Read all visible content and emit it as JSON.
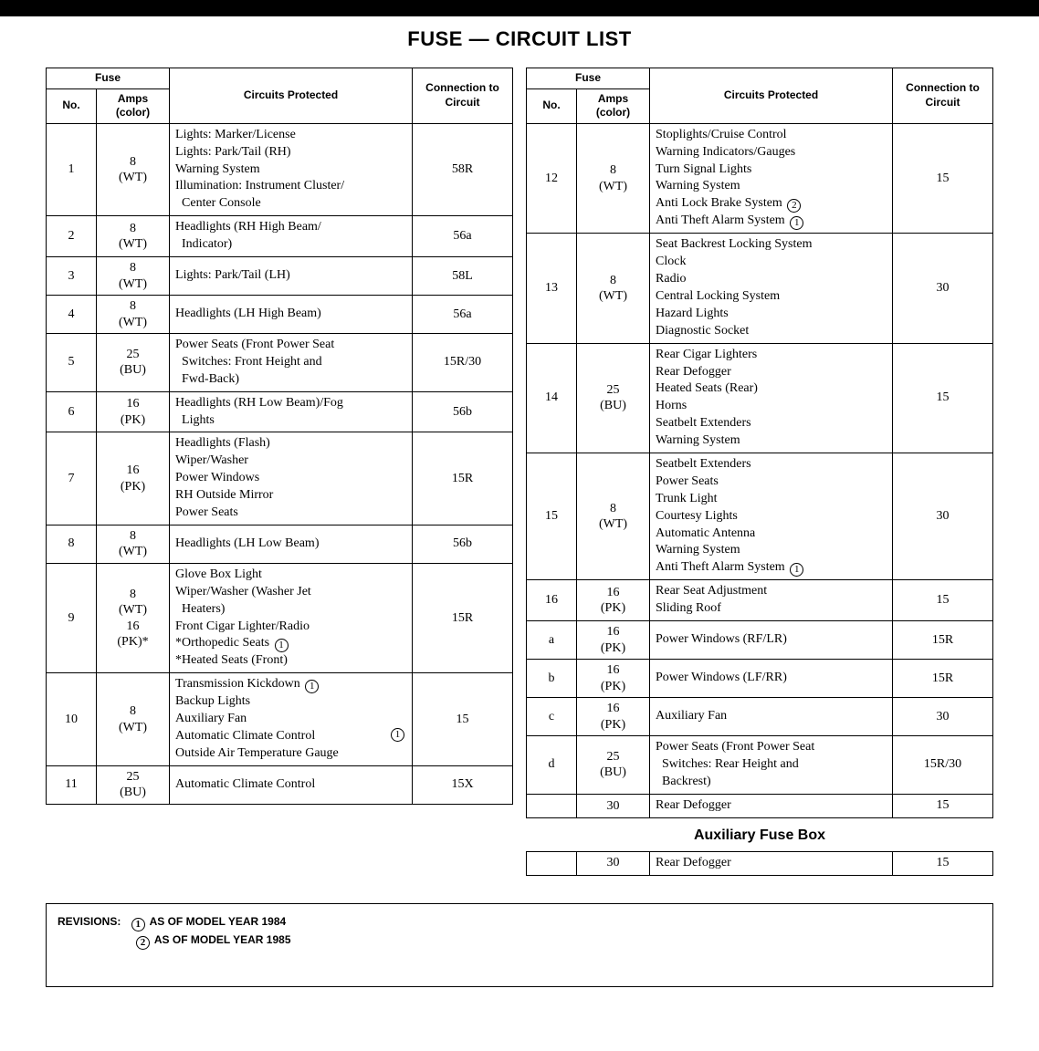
{
  "title": "FUSE — CIRCUIT LIST",
  "headers": {
    "fuse": "Fuse",
    "no": "No.",
    "amps": "Amps\n(color)",
    "circuits": "Circuits Protected",
    "conn": "Connection to\nCircuit"
  },
  "left_rows": [
    {
      "no": "1",
      "amps": "8\n(WT)",
      "circuits": [
        "Lights: Marker/License",
        "Lights: Park/Tail (RH)",
        "Warning System",
        "Illumination: Instrument Cluster/",
        "  Center Console"
      ],
      "conn": "58R"
    },
    {
      "no": "2",
      "amps": "8\n(WT)",
      "circuits": [
        "Headlights (RH High Beam/",
        "  Indicator)"
      ],
      "conn": "56a"
    },
    {
      "no": "3",
      "amps": "8\n(WT)",
      "circuits": [
        "Lights: Park/Tail (LH)"
      ],
      "conn": "58L"
    },
    {
      "no": "4",
      "amps": "8\n(WT)",
      "circuits": [
        "Headlights (LH High Beam)"
      ],
      "conn": "56a"
    },
    {
      "no": "5",
      "amps": "25\n(BU)",
      "circuits": [
        "Power Seats (Front Power Seat",
        "  Switches: Front Height and",
        "  Fwd-Back)"
      ],
      "conn": "15R/30"
    },
    {
      "no": "6",
      "amps": "16\n(PK)",
      "circuits": [
        "Headlights (RH Low Beam)/Fog",
        "  Lights"
      ],
      "conn": "56b"
    },
    {
      "no": "7",
      "amps": "16\n(PK)",
      "circuits": [
        "Headlights (Flash)",
        "Wiper/Washer",
        "Power Windows",
        "RH Outside Mirror",
        "Power Seats"
      ],
      "conn": "15R"
    },
    {
      "no": "8",
      "amps": "8\n(WT)",
      "circuits": [
        "Headlights (LH Low Beam)"
      ],
      "conn": "56b"
    },
    {
      "no": "9",
      "amps": "8\n(WT)\n16\n(PK)*",
      "circuits": [
        "Glove Box Light",
        "Wiper/Washer (Washer Jet",
        "  Heaters)",
        "Front Cigar Lighter/Radio",
        {
          "text": "*Orthopedic Seats ",
          "note": "1"
        },
        "*Heated Seats (Front)"
      ],
      "conn": "15R"
    },
    {
      "no": "10",
      "amps": "8\n(WT)",
      "circuits": [
        {
          "text": "Transmission Kickdown ",
          "note": "1"
        },
        "Backup Lights",
        "Auxiliary Fan",
        {
          "text": "Automatic Climate Control ",
          "note": "1",
          "note_right": true
        },
        "Outside Air Temperature Gauge"
      ],
      "conn": "15"
    },
    {
      "no": "11",
      "amps": "25\n(BU)",
      "circuits": [
        "Automatic Climate Control"
      ],
      "conn": "15X"
    }
  ],
  "right_rows": [
    {
      "no": "12",
      "amps": "8\n(WT)",
      "circuits": [
        "Stoplights/Cruise Control",
        "Warning Indicators/Gauges",
        "Turn Signal Lights",
        "Warning System",
        {
          "text": "Anti Lock Brake System ",
          "note": "2"
        },
        {
          "text": "Anti Theft Alarm System ",
          "note": "1"
        }
      ],
      "conn": "15"
    },
    {
      "no": "13",
      "amps": "8\n(WT)",
      "circuits": [
        "Seat Backrest Locking System",
        "Clock",
        "Radio",
        "Central Locking System",
        "Hazard Lights",
        "Diagnostic Socket"
      ],
      "conn": "30"
    },
    {
      "no": "14",
      "amps": "25\n(BU)",
      "circuits": [
        "Rear Cigar Lighters",
        "Rear Defogger",
        "Heated Seats (Rear)",
        "Horns",
        "Seatbelt Extenders",
        "Warning System"
      ],
      "conn": "15"
    },
    {
      "no": "15",
      "amps": "8\n(WT)",
      "circuits": [
        "Seatbelt Extenders",
        "Power Seats",
        "Trunk Light",
        "Courtesy Lights",
        "Automatic Antenna",
        "Warning System",
        {
          "text": "Anti Theft Alarm System ",
          "note": "1"
        }
      ],
      "conn": "30"
    },
    {
      "no": "16",
      "amps": "16\n(PK)",
      "circuits": [
        "Rear Seat Adjustment",
        "Sliding Roof"
      ],
      "conn": "15"
    },
    {
      "no": "a",
      "amps": "16\n(PK)",
      "circuits": [
        "Power Windows (RF/LR)"
      ],
      "conn": "15R"
    },
    {
      "no": "b",
      "amps": "16\n(PK)",
      "circuits": [
        "Power Windows (LF/RR)"
      ],
      "conn": "15R"
    },
    {
      "no": "c",
      "amps": "16\n(PK)",
      "circuits": [
        "Auxiliary Fan"
      ],
      "conn": "30"
    },
    {
      "no": "d",
      "amps": "25\n(BU)",
      "circuits": [
        "Power Seats (Front Power Seat",
        "  Switches: Rear Height and",
        "  Backrest)"
      ],
      "conn": "15R/30"
    },
    {
      "no": "",
      "amps": "30",
      "circuits": [
        "Rear Defogger"
      ],
      "conn": "15"
    }
  ],
  "aux_title": "Auxiliary Fuse Box",
  "aux_row": {
    "no": "",
    "amps": "30",
    "circuits": [
      "Rear Defogger"
    ],
    "conn": "15"
  },
  "revisions": {
    "label": "REVISIONS:",
    "items": [
      {
        "note": "1",
        "text": "AS OF MODEL YEAR 1984"
      },
      {
        "note": "2",
        "text": "AS OF MODEL YEAR 1985"
      }
    ]
  }
}
